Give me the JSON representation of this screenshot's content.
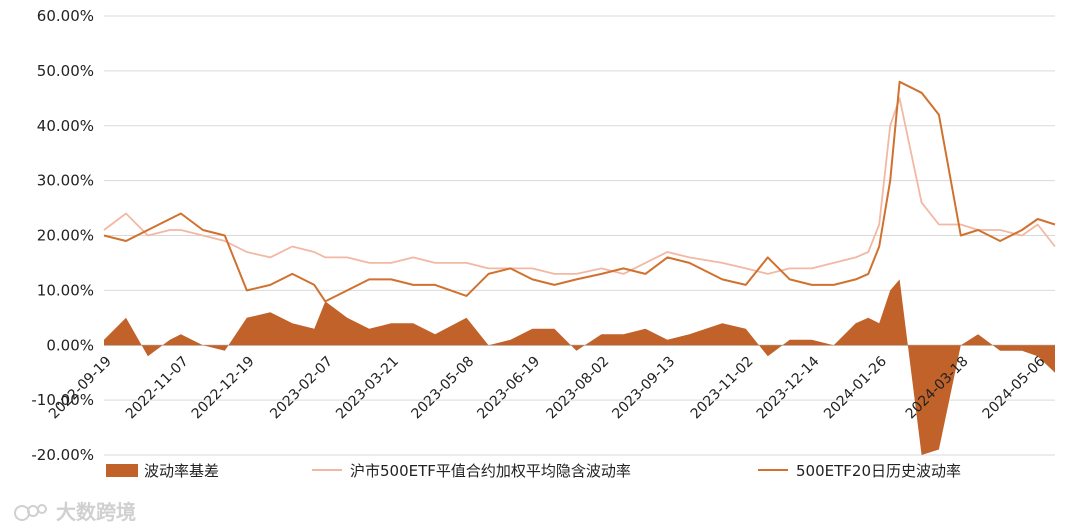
{
  "chart_data": {
    "type": "area",
    "title": "",
    "xlabel": "",
    "ylabel": "",
    "ylim": [
      -0.2,
      0.6
    ],
    "y_ticks": [
      "60.00%",
      "50.00%",
      "40.00%",
      "30.00%",
      "20.00%",
      "10.00%",
      "0.00%",
      "-10.00%",
      "-20.00%"
    ],
    "y_tick_values": [
      0.6,
      0.5,
      0.4,
      0.3,
      0.2,
      0.1,
      0.0,
      -0.1,
      -0.2
    ],
    "x_ticks": [
      "2022-09-19",
      "2022-11-07",
      "2022-12-19",
      "2023-02-07",
      "2023-03-21",
      "2023-05-08",
      "2023-06-19",
      "2023-08-02",
      "2023-09-13",
      "2023-11-02",
      "2023-12-14",
      "2024-01-26",
      "2024-03-18",
      "2024-05-06"
    ],
    "grid": "horizontal",
    "legend_position": "bottom",
    "x": [
      "2022-09-19",
      "2022-10-03",
      "2022-10-17",
      "2022-10-31",
      "2022-11-07",
      "2022-11-21",
      "2022-12-05",
      "2022-12-19",
      "2023-01-03",
      "2023-01-17",
      "2023-01-31",
      "2023-02-07",
      "2023-02-21",
      "2023-03-07",
      "2023-03-21",
      "2023-04-04",
      "2023-04-18",
      "2023-05-08",
      "2023-05-22",
      "2023-06-05",
      "2023-06-19",
      "2023-07-03",
      "2023-07-17",
      "2023-08-02",
      "2023-08-16",
      "2023-08-30",
      "2023-09-13",
      "2023-09-27",
      "2023-10-18",
      "2023-11-02",
      "2023-11-16",
      "2023-11-30",
      "2023-12-14",
      "2023-12-28",
      "2024-01-11",
      "2024-01-19",
      "2024-01-26",
      "2024-02-02",
      "2024-02-08",
      "2024-02-22",
      "2024-03-04",
      "2024-03-18",
      "2024-03-29",
      "2024-04-12",
      "2024-04-26",
      "2024-05-06",
      "2024-05-17"
    ],
    "series": [
      {
        "name": "波动率基差",
        "kind": "area",
        "color": "#c0622a",
        "values": [
          0.01,
          0.05,
          -0.02,
          0.01,
          0.02,
          0.0,
          -0.01,
          0.05,
          0.06,
          0.04,
          0.03,
          0.08,
          0.05,
          0.03,
          0.04,
          0.04,
          0.02,
          0.05,
          0.0,
          0.01,
          0.03,
          0.03,
          -0.01,
          0.02,
          0.02,
          0.03,
          0.01,
          0.02,
          0.04,
          0.03,
          -0.02,
          0.01,
          0.01,
          0.0,
          0.04,
          0.05,
          0.04,
          0.1,
          0.12,
          -0.2,
          -0.19,
          0.0,
          0.02,
          -0.01,
          -0.01,
          -0.02,
          -0.05
        ]
      },
      {
        "name": "沪市500ETF平值合约加权平均隐含波动率",
        "kind": "line",
        "color": "#f2b8a4",
        "values": [
          0.21,
          0.24,
          0.2,
          0.21,
          0.21,
          0.2,
          0.19,
          0.17,
          0.16,
          0.18,
          0.17,
          0.16,
          0.16,
          0.15,
          0.15,
          0.16,
          0.15,
          0.15,
          0.14,
          0.14,
          0.14,
          0.13,
          0.13,
          0.14,
          0.13,
          0.15,
          0.17,
          0.16,
          0.15,
          0.14,
          0.13,
          0.14,
          0.14,
          0.15,
          0.16,
          0.17,
          0.22,
          0.4,
          0.45,
          0.26,
          0.22,
          0.22,
          0.21,
          0.21,
          0.2,
          0.22,
          0.18
        ]
      },
      {
        "name": "500ETF20日历史波动率",
        "kind": "line",
        "color": "#d1712f",
        "values": [
          0.2,
          0.19,
          0.21,
          0.23,
          0.24,
          0.21,
          0.2,
          0.1,
          0.11,
          0.13,
          0.11,
          0.08,
          0.1,
          0.12,
          0.12,
          0.11,
          0.11,
          0.09,
          0.13,
          0.14,
          0.12,
          0.11,
          0.12,
          0.13,
          0.14,
          0.13,
          0.16,
          0.15,
          0.12,
          0.11,
          0.16,
          0.12,
          0.11,
          0.11,
          0.12,
          0.13,
          0.18,
          0.3,
          0.48,
          0.46,
          0.42,
          0.2,
          0.21,
          0.19,
          0.21,
          0.23,
          0.22
        ]
      }
    ]
  },
  "watermark": {
    "text": "大数跨境"
  }
}
